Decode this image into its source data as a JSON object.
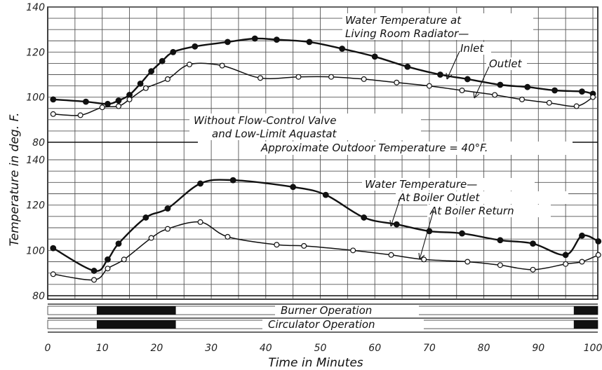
{
  "chart_data": {
    "type": "line",
    "xlabel": "Time in Minutes",
    "ylabel": "Temperature in deg. F.",
    "x_ticks": [
      "0",
      "10",
      "20",
      "30",
      "40",
      "50",
      "60",
      "70",
      "80",
      "90",
      "100"
    ],
    "xlim": [
      0,
      101
    ],
    "grid": true,
    "upper_panel": {
      "ylim": [
        80,
        140
      ],
      "y_ticks": [
        "80",
        "100",
        "120",
        "140"
      ],
      "title_lines": [
        "Water Temperature at",
        "Living Room Radiator—"
      ],
      "condition_lines": [
        "Without Flow-Control Valve",
        "and Low-Limit Aquastat"
      ],
      "outdoor_note": "Approximate Outdoor Temperature = 40°F.",
      "series": [
        {
          "name": "Inlet",
          "marker": "filled",
          "x": [
            1,
            7,
            11,
            13,
            15,
            17,
            19,
            21,
            23,
            27,
            33,
            38,
            42,
            48,
            54,
            60,
            66,
            72,
            77,
            83,
            88,
            93,
            98,
            100
          ],
          "y": [
            99,
            98,
            97,
            98.5,
            101,
            106,
            111.5,
            116,
            120,
            122.5,
            124.5,
            126,
            125.5,
            124.5,
            121.5,
            118,
            113.5,
            110,
            108,
            105.5,
            104.5,
            103,
            102.5,
            101.5
          ]
        },
        {
          "name": "Outlet",
          "marker": "open",
          "x": [
            1,
            6,
            10,
            13,
            15,
            18,
            22,
            26,
            32,
            39,
            46,
            52,
            58,
            64,
            70,
            76,
            82,
            87,
            92,
            97,
            100
          ],
          "y": [
            92.5,
            92,
            95.5,
            96,
            99,
            104,
            108,
            114.5,
            114,
            108.5,
            109,
            109,
            108,
            106.5,
            105,
            103,
            101,
            99,
            97.5,
            96,
            100
          ]
        }
      ]
    },
    "lower_panel": {
      "ylim": [
        80,
        140
      ],
      "y_ticks": [
        "80",
        "100",
        "120",
        "140"
      ],
      "title_lines": [
        "Water Temperature—"
      ],
      "series": [
        {
          "name": "At Boiler Outlet",
          "marker": "filled",
          "x": [
            1,
            8.5,
            11,
            13,
            18,
            22,
            28,
            34,
            45,
            51,
            58,
            64,
            70,
            76,
            83,
            89,
            95,
            98,
            101
          ],
          "y": [
            101,
            91,
            96,
            103,
            114.5,
            118.5,
            129.5,
            131,
            128,
            124.5,
            114.5,
            111.5,
            108.5,
            107.5,
            104.5,
            103,
            98,
            106.5,
            104
          ]
        },
        {
          "name": "At Boiler Return",
          "marker": "open",
          "x": [
            1,
            8.5,
            11,
            14,
            19,
            22,
            28,
            33,
            42,
            47,
            56,
            63,
            69,
            77,
            83,
            89,
            95,
            98,
            101
          ],
          "y": [
            89.5,
            87,
            92,
            96,
            105.5,
            109.5,
            112.5,
            106,
            102.5,
            102,
            100,
            98,
            96,
            95,
            93.5,
            91.5,
            94,
            95,
            98
          ]
        }
      ]
    },
    "operation_bars": {
      "rows": [
        "Burner Operation",
        "Circulator Operation"
      ],
      "on_periods": [
        [
          9,
          23.5
        ],
        [
          96.5,
          101
        ]
      ]
    }
  }
}
